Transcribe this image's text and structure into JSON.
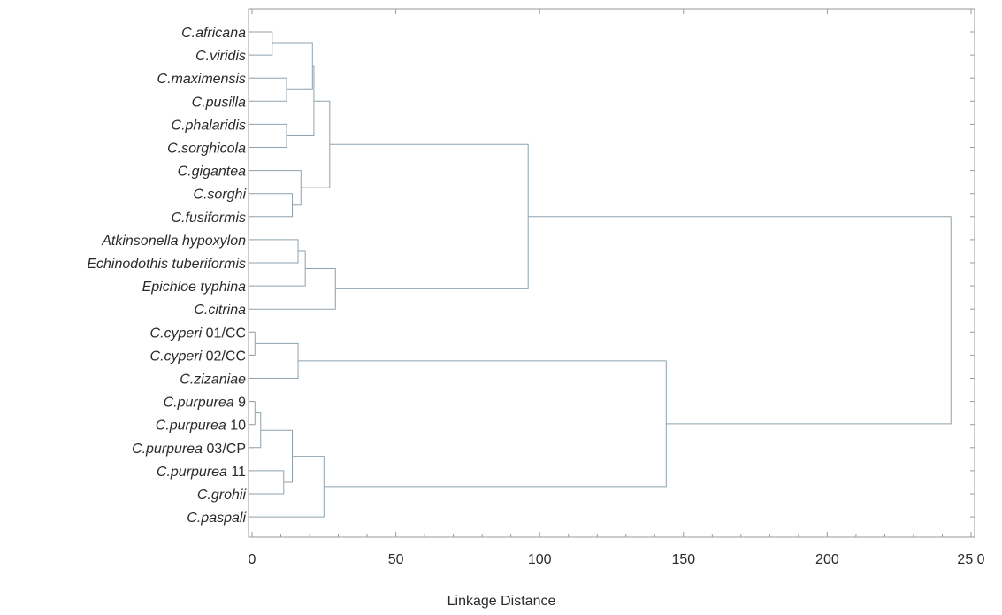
{
  "chart_data": {
    "type": "dendrogram",
    "xlabel": "Linkage Distance",
    "xlim": [
      0,
      250
    ],
    "x_ticks": [
      0,
      50,
      100,
      150,
      200,
      250
    ],
    "x_tick_labels": [
      "0",
      "50",
      "100",
      "150",
      "200",
      "25 0"
    ],
    "leaves": [
      {
        "italic": "C.africana",
        "suffix": ""
      },
      {
        "italic": "C.viridis",
        "suffix": ""
      },
      {
        "italic": "C.maximensis",
        "suffix": ""
      },
      {
        "italic": "C.pusilla",
        "suffix": ""
      },
      {
        "italic": "C.phalaridis",
        "suffix": ""
      },
      {
        "italic": "C.sorghicola",
        "suffix": ""
      },
      {
        "italic": "C.gigantea",
        "suffix": ""
      },
      {
        "italic": "C.sorghi",
        "suffix": ""
      },
      {
        "italic": "C.fusiformis",
        "suffix": ""
      },
      {
        "italic": "Atkinsonella hypoxylon",
        "suffix": ""
      },
      {
        "italic": "Echinodothis tuberiformis",
        "suffix": ""
      },
      {
        "italic": "Epichloe typhina",
        "suffix": ""
      },
      {
        "italic": "C.citrina",
        "suffix": ""
      },
      {
        "italic": "C.cyperi",
        "suffix": " 01/CC"
      },
      {
        "italic": "C.cyperi",
        "suffix": " 02/CC"
      },
      {
        "italic": "C.zizaniae",
        "suffix": ""
      },
      {
        "italic": "C.purpurea",
        "suffix": " 9"
      },
      {
        "italic": "C.purpurea",
        "suffix": " 10"
      },
      {
        "italic": "C.purpurea",
        "suffix": " 03/CP"
      },
      {
        "italic": "C.purpurea",
        "suffix": " 11"
      },
      {
        "italic": "C.grohii",
        "suffix": ""
      },
      {
        "italic": "C.paspali",
        "suffix": ""
      }
    ],
    "merges": [
      {
        "id": "n1",
        "a": 0,
        "b": 1,
        "distance": 7
      },
      {
        "id": "n2",
        "a": 2,
        "b": 3,
        "distance": 12
      },
      {
        "id": "n3",
        "a": "n1",
        "b": "n2",
        "distance": 21
      },
      {
        "id": "n4",
        "a": 4,
        "b": 5,
        "distance": 12
      },
      {
        "id": "n5",
        "a": "n3",
        "b": "n4",
        "distance": 21.5
      },
      {
        "id": "n6",
        "a": 7,
        "b": 8,
        "distance": 14
      },
      {
        "id": "n7",
        "a": 6,
        "b": "n6",
        "distance": 17
      },
      {
        "id": "n8",
        "a": "n5",
        "b": "n7",
        "distance": 27
      },
      {
        "id": "n9",
        "a": 9,
        "b": 10,
        "distance": 16
      },
      {
        "id": "n10",
        "a": "n9",
        "b": 11,
        "distance": 18.5
      },
      {
        "id": "n11",
        "a": "n10",
        "b": 12,
        "distance": 29
      },
      {
        "id": "n12",
        "a": "n8",
        "b": "n11",
        "distance": 96
      },
      {
        "id": "n13",
        "a": 13,
        "b": 14,
        "distance": 1
      },
      {
        "id": "n14",
        "a": "n13",
        "b": 15,
        "distance": 16
      },
      {
        "id": "n15",
        "a": 16,
        "b": 17,
        "distance": 1
      },
      {
        "id": "n16",
        "a": "n15",
        "b": 18,
        "distance": 3
      },
      {
        "id": "n17",
        "a": 19,
        "b": 20,
        "distance": 11
      },
      {
        "id": "n18",
        "a": "n16",
        "b": "n17",
        "distance": 14
      },
      {
        "id": "n19",
        "a": "n18",
        "b": 21,
        "distance": 25
      },
      {
        "id": "n20",
        "a": "n14",
        "b": "n19",
        "distance": 144
      },
      {
        "id": "n21",
        "a": "n12",
        "b": "n20",
        "distance": 243
      }
    ]
  }
}
